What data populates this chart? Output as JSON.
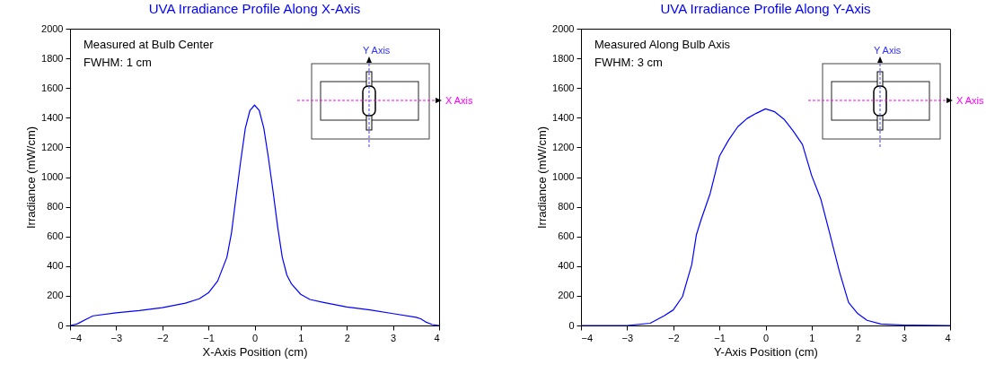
{
  "chart_data": [
    {
      "type": "line",
      "title": "UVA Irradiance Profile Along X-Axis",
      "xlabel": "X-Axis Position (cm)",
      "ylabel": "Irradiance (mW/cm)",
      "annotations": [
        "Measured at Bulb Center",
        "FWHM: 1 cm",
        "Y Axis",
        "X Axis"
      ],
      "x": [
        -4,
        -3.85,
        -3.6,
        -3.5,
        -3,
        -2.5,
        -2,
        -1.5,
        -1.2,
        -1,
        -0.8,
        -0.6,
        -0.5,
        -0.4,
        -0.3,
        -0.2,
        -0.1,
        0,
        0.1,
        0.2,
        0.3,
        0.4,
        0.5,
        0.6,
        0.7,
        0.8,
        1,
        1.2,
        1.5,
        2,
        2.5,
        3,
        3.5,
        3.6,
        3.7,
        3.85,
        4
      ],
      "series": [
        {
          "color": "#0000ff",
          "values": [
            0,
            10,
            50,
            65,
            85,
            100,
            120,
            150,
            180,
            220,
            300,
            460,
            625,
            870,
            1110,
            1330,
            1450,
            1485,
            1450,
            1330,
            1130,
            905,
            665,
            460,
            340,
            280,
            210,
            175,
            155,
            125,
            105,
            80,
            55,
            45,
            25,
            6,
            0
          ]
        }
      ],
      "xlim": [
        -4,
        4
      ],
      "ylim": [
        0,
        2000
      ],
      "xticks": [
        -4,
        -3,
        -2,
        -1,
        0,
        1,
        2,
        3,
        4
      ],
      "yticks": [
        0,
        200,
        400,
        600,
        800,
        1000,
        1200,
        1400,
        1600,
        1800,
        2000
      ],
      "marker": "none",
      "line_style": "solid"
    },
    {
      "type": "line",
      "title": "UVA Irradiance Profile Along Y-Axis",
      "xlabel": "Y-Axis Position (cm)",
      "ylabel": "Irradiance (mW/cm)",
      "annotations": [
        "Measured Along Bulb Axis",
        "FWHM: 3 cm",
        "Y Axis",
        "X Axis"
      ],
      "x": [
        -4,
        -3,
        -2.5,
        -2.2,
        -2,
        -1.8,
        -1.6,
        -1.5,
        -1.4,
        -1.2,
        -1,
        -0.8,
        -0.6,
        -0.4,
        -0.2,
        0,
        0.2,
        0.4,
        0.6,
        0.8,
        1,
        1.2,
        1.4,
        1.6,
        1.8,
        2,
        2.2,
        2.5,
        3,
        4
      ],
      "series": [
        {
          "color": "#0000ff",
          "values": [
            0,
            0,
            15,
            65,
            105,
            195,
            410,
            610,
            710,
            890,
            1140,
            1250,
            1340,
            1395,
            1430,
            1460,
            1440,
            1390,
            1310,
            1220,
            1010,
            850,
            610,
            365,
            155,
            80,
            35,
            10,
            3,
            0
          ]
        }
      ],
      "xlim": [
        -4,
        4
      ],
      "ylim": [
        0,
        2000
      ],
      "xticks": [
        -4,
        -3,
        -2,
        -1,
        0,
        1,
        2,
        3,
        4
      ],
      "yticks": [
        0,
        200,
        400,
        600,
        800,
        1000,
        1200,
        1400,
        1600,
        1800,
        2000
      ],
      "marker": "none",
      "line_style": "solid"
    }
  ]
}
